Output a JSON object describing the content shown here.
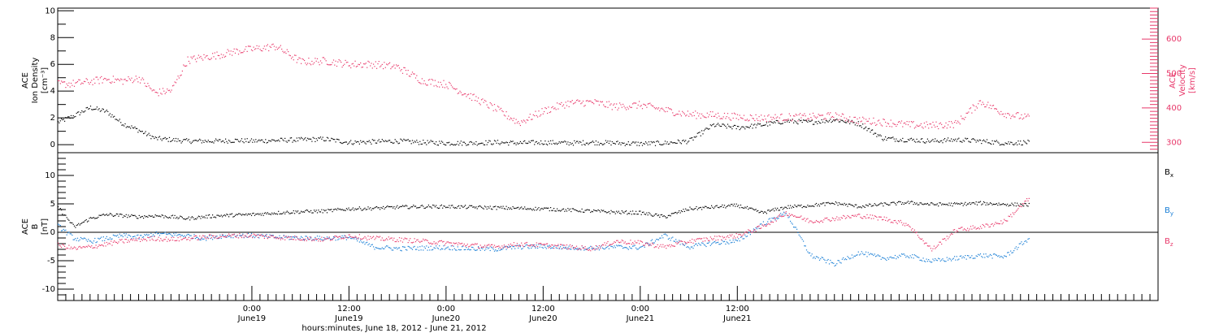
{
  "chart_data": [
    {
      "type": "scatter",
      "panel": "top",
      "ylabel_lines": [
        "ACE",
        "Ion Density",
        "[cm⁻³]"
      ],
      "y2label_lines": [
        "ACE",
        "Velocity",
        "[km/s]"
      ],
      "ylim": [
        -0.6,
        10.2
      ],
      "y2lim": [
        270,
        690
      ],
      "yticks": [
        "0",
        "2",
        "4",
        "6",
        "8",
        "10"
      ],
      "yticks_values": [
        0,
        2,
        4,
        6,
        8,
        10
      ],
      "y2ticks": [
        "300",
        "400",
        "500",
        "600"
      ],
      "y2ticks_values": [
        300,
        400,
        500,
        600
      ],
      "series": [
        {
          "name_role": "density",
          "color": "#000000",
          "axis": "left",
          "x_hours": [
            0,
            2,
            4,
            6,
            8,
            10,
            12,
            14,
            16,
            18,
            20,
            22,
            24,
            27,
            30,
            33,
            36,
            39,
            42,
            45,
            48,
            51,
            54,
            57,
            60,
            63,
            66,
            69,
            72,
            75,
            78,
            81,
            84,
            87,
            90,
            93,
            96,
            99,
            102,
            105,
            108,
            111,
            114,
            117,
            120
          ],
          "values": [
            1.7,
            2.2,
            2.8,
            2.5,
            1.6,
            1.1,
            0.5,
            0.4,
            0.3,
            0.3,
            0.3,
            0.35,
            0.3,
            0.35,
            0.4,
            0.45,
            0.2,
            0.25,
            0.3,
            0.2,
            0.15,
            0.15,
            0.2,
            0.15,
            0.2,
            0.15,
            0.2,
            0.15,
            0.1,
            0.15,
            0.3,
            1.5,
            1.3,
            1.5,
            1.8,
            1.7,
            1.9,
            1.6,
            0.5,
            0.4,
            0.3,
            0.4,
            0.3,
            0.15,
            0.2
          ]
        },
        {
          "name_role": "velocity",
          "color": "#e8386a",
          "axis": "right",
          "x_hours": [
            0,
            2,
            4,
            6,
            8,
            10,
            12,
            14,
            16,
            18,
            20,
            22,
            24,
            27,
            30,
            33,
            36,
            39,
            42,
            45,
            48,
            51,
            54,
            57,
            60,
            63,
            66,
            69,
            72,
            75,
            78,
            81,
            84,
            87,
            90,
            93,
            96,
            99,
            102,
            105,
            108,
            111,
            114,
            117,
            120
          ],
          "values": [
            470,
            472,
            478,
            485,
            480,
            488,
            445,
            452,
            540,
            548,
            556,
            566,
            572,
            580,
            535,
            538,
            528,
            528,
            520,
            480,
            470,
            435,
            400,
            358,
            392,
            415,
            418,
            405,
            410,
            395,
            382,
            380,
            375,
            372,
            374,
            375,
            378,
            365,
            360,
            352,
            350,
            355,
            420,
            385,
            372
          ]
        }
      ]
    },
    {
      "type": "scatter",
      "panel": "bottom",
      "ylabel_lines": [
        "ACE",
        "B",
        "[nT]"
      ],
      "ylim": [
        -12,
        14
      ],
      "yticks": [
        "-10",
        "-5",
        "0",
        "5",
        "10"
      ],
      "yticks_values": [
        -10,
        -5,
        0,
        5,
        10
      ],
      "zero_line": true,
      "series": [
        {
          "legend_main": "B",
          "legend_sub": "x",
          "color": "#000000",
          "x_hours": [
            0,
            2,
            4,
            6,
            8,
            10,
            12,
            14,
            16,
            18,
            20,
            22,
            24,
            27,
            30,
            33,
            36,
            39,
            42,
            45,
            48,
            51,
            54,
            57,
            60,
            63,
            66,
            69,
            72,
            75,
            78,
            81,
            84,
            87,
            90,
            93,
            96,
            99,
            102,
            105,
            108,
            111,
            114,
            117,
            120
          ],
          "values": [
            4.5,
            1.0,
            2.5,
            3.2,
            3.0,
            2.8,
            3.0,
            2.8,
            2.5,
            2.8,
            3.0,
            3.1,
            3.2,
            3.5,
            3.7,
            3.8,
            4.2,
            4.3,
            4.5,
            4.6,
            4.6,
            4.5,
            4.4,
            4.3,
            4.2,
            4.0,
            3.8,
            3.6,
            3.5,
            2.8,
            4.2,
            4.5,
            4.8,
            3.5,
            4.5,
            4.8,
            5.2,
            4.6,
            5.0,
            5.3,
            5.0,
            5.0,
            5.2,
            5.0,
            4.9
          ]
        },
        {
          "legend_main": "B",
          "legend_sub": "y",
          "color": "#1a7fd6",
          "x_hours": [
            0,
            2,
            4,
            6,
            8,
            10,
            12,
            14,
            16,
            18,
            20,
            22,
            24,
            27,
            30,
            33,
            36,
            39,
            42,
            45,
            48,
            51,
            54,
            57,
            60,
            63,
            66,
            69,
            72,
            75,
            78,
            81,
            84,
            87,
            90,
            93,
            96,
            99,
            102,
            105,
            108,
            111,
            114,
            117,
            120
          ],
          "values": [
            1.2,
            -1.0,
            -1.5,
            -1.0,
            -0.5,
            -0.8,
            -0.2,
            -0.3,
            -0.5,
            -1.0,
            -0.6,
            -0.5,
            -0.5,
            -0.8,
            -0.9,
            -1.0,
            -0.8,
            -2.5,
            -2.8,
            -2.7,
            -2.6,
            -2.8,
            -2.9,
            -2.5,
            -2.4,
            -2.6,
            -2.7,
            -2.5,
            -2.6,
            -0.5,
            -2.5,
            -1.8,
            -1.5,
            1.5,
            3.5,
            -4.0,
            -5.5,
            -3.5,
            -4.5,
            -4.0,
            -5.0,
            -4.5,
            -4.0,
            -4.2,
            -1.0
          ]
        },
        {
          "legend_main": "B",
          "legend_sub": "z",
          "color": "#e8386a",
          "x_hours": [
            0,
            2,
            4,
            6,
            8,
            10,
            12,
            14,
            16,
            18,
            20,
            22,
            24,
            27,
            30,
            33,
            36,
            39,
            42,
            45,
            48,
            51,
            54,
            57,
            60,
            63,
            66,
            69,
            72,
            75,
            78,
            81,
            84,
            87,
            90,
            93,
            96,
            99,
            102,
            105,
            108,
            111,
            114,
            117,
            120
          ],
          "values": [
            -2.2,
            -2.8,
            -2.5,
            -2.0,
            -1.5,
            -1.2,
            -1.0,
            -1.2,
            -1.0,
            -0.8,
            -0.6,
            -0.5,
            -0.5,
            -0.8,
            -1.0,
            -1.2,
            -0.5,
            -1.0,
            -1.2,
            -1.5,
            -1.8,
            -2.2,
            -2.5,
            -2.0,
            -2.2,
            -2.5,
            -2.8,
            -1.5,
            -1.8,
            -2.5,
            -1.5,
            -1.0,
            -0.5,
            1.0,
            3.5,
            2.0,
            2.5,
            3.0,
            2.5,
            1.5,
            -3.0,
            0.5,
            1.0,
            2.0,
            6.0
          ]
        }
      ]
    }
  ],
  "x_axis": {
    "range_hours": [
      0,
      136
    ],
    "ticks": [
      {
        "hour": 24,
        "time": "0:00",
        "date": "June19"
      },
      {
        "hour": 36,
        "time": "12:00",
        "date": "June19"
      },
      {
        "hour": 48,
        "time": "0:00",
        "date": "June20"
      },
      {
        "hour": 60,
        "time": "12:00",
        "date": "June20"
      },
      {
        "hour": 72,
        "time": "0:00",
        "date": "June21"
      },
      {
        "hour": 84,
        "time": "12:00",
        "date": "June21"
      }
    ],
    "xlabel": "hours:minutes, June 18, 2012 - June 21, 2012"
  },
  "colors": {
    "black": "#000000",
    "pink": "#e8386a",
    "blue": "#1a7fd6"
  }
}
